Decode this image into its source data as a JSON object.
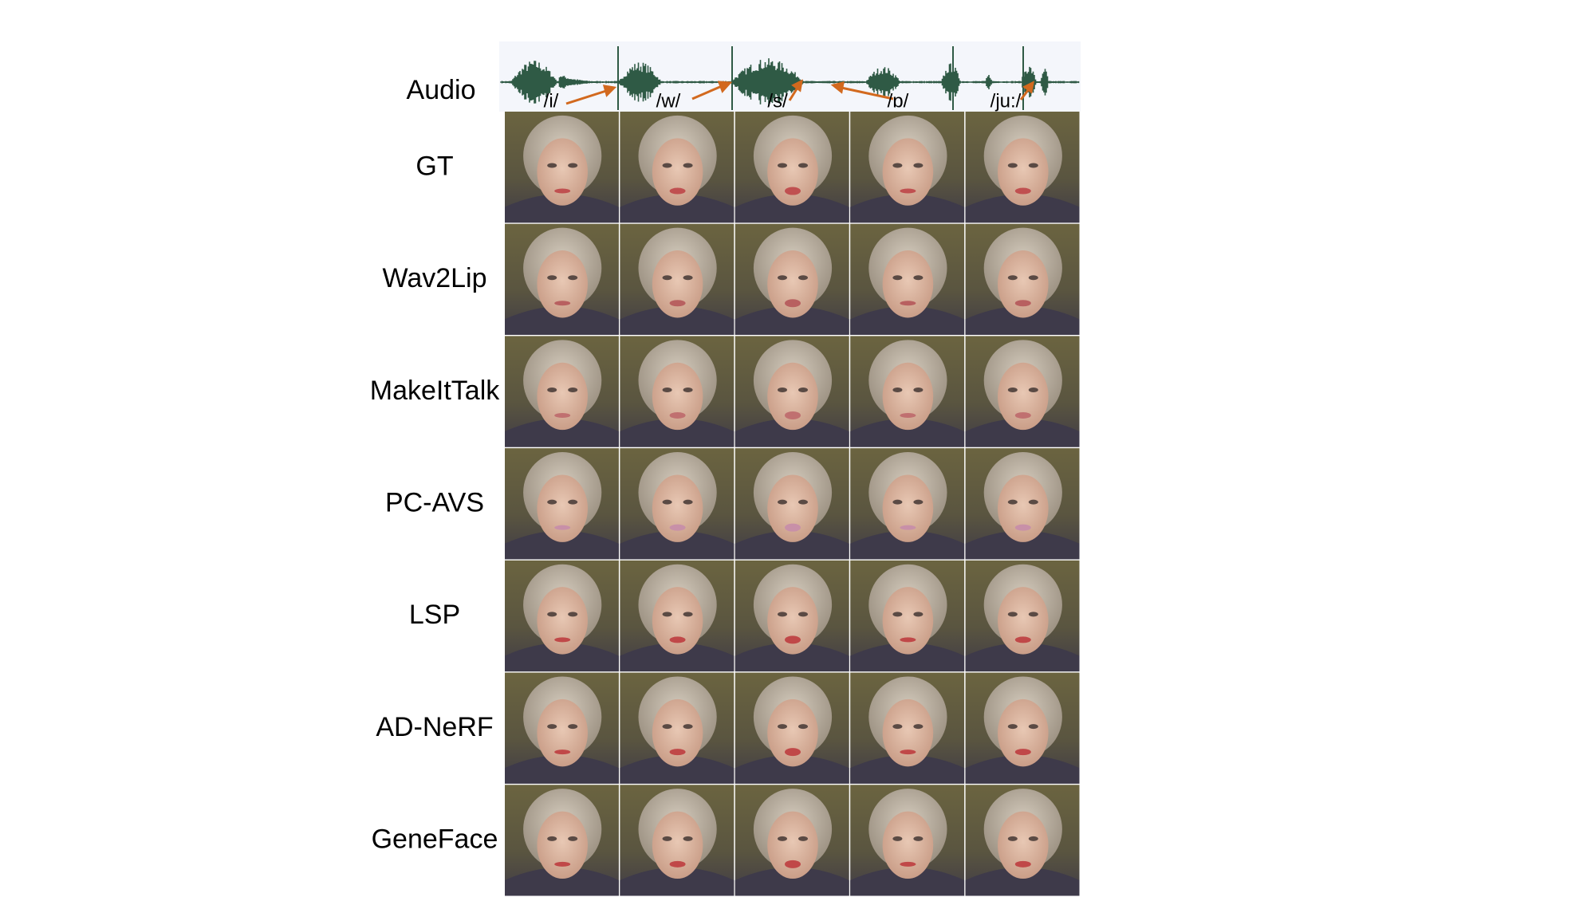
{
  "audio_label": "Audio",
  "phonemes": [
    "/i/",
    "/w/",
    "/s/",
    "/ɒ/",
    "/ju:/"
  ],
  "methods": [
    "GT",
    "Wav2Lip",
    "MakeItTalk",
    "PC-AVS",
    "LSP",
    "AD-NeRF",
    "GeneFace"
  ]
}
